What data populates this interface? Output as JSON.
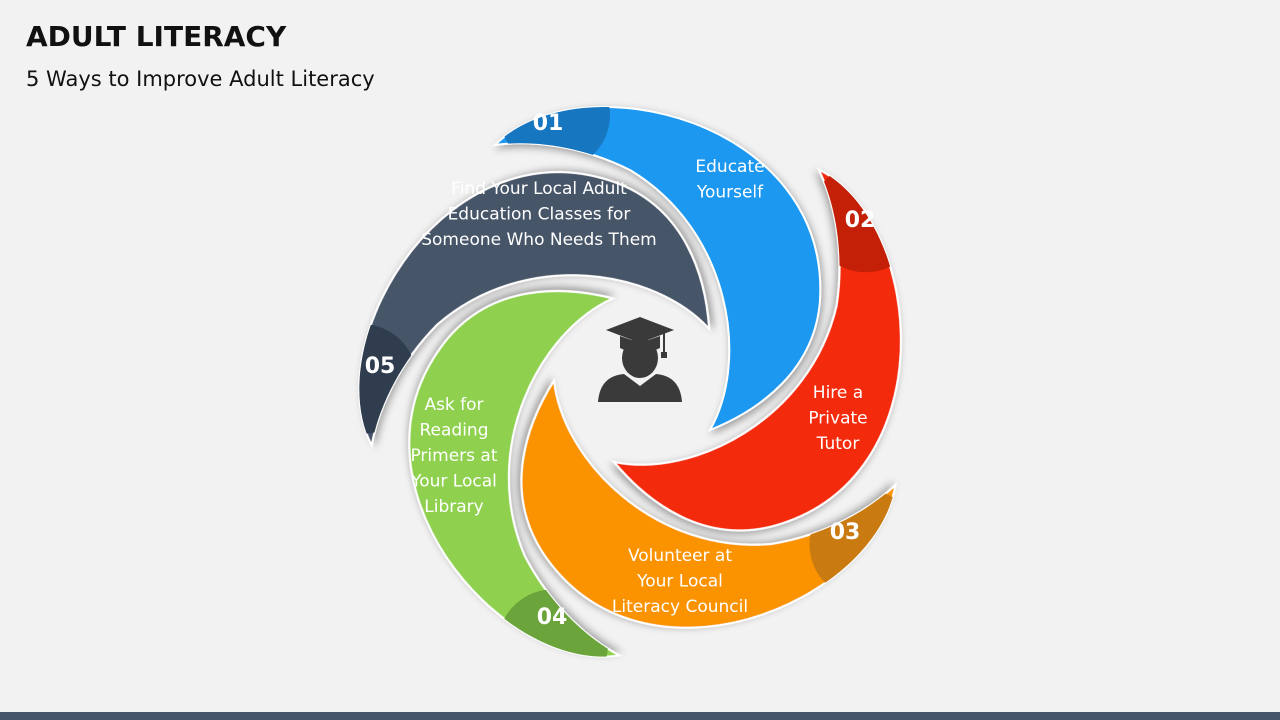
{
  "title": "ADULT LITERACY",
  "subtitle": "5 Ways to Improve Adult Literacy",
  "items": [
    {
      "number": "01",
      "lines": [
        "Educate",
        "Yourself"
      ]
    },
    {
      "number": "02",
      "lines": [
        "Hire a",
        "Private",
        "Tutor"
      ]
    },
    {
      "number": "03",
      "lines": [
        "Volunteer at",
        "Your Local",
        "Literacy Council"
      ]
    },
    {
      "number": "04",
      "lines": [
        "Ask for",
        "Reading",
        "Primers at",
        "Your Local",
        "Library"
      ]
    },
    {
      "number": "05",
      "lines": [
        "Find Your Local Adult",
        "Education Classes for",
        "Someone Who Needs Them"
      ]
    }
  ]
}
